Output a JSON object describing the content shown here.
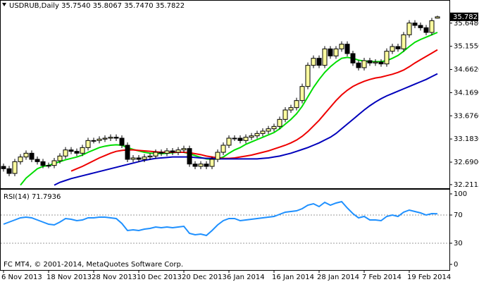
{
  "chart_data": [
    {
      "type": "candlestick",
      "title": "USDRUB,Daily 35.7540 35.8067 35.7470 35.7822",
      "categories": [
        "6 Nov 2013",
        null,
        null,
        null,
        null,
        null,
        null,
        null,
        "18 Nov 2013",
        null,
        null,
        null,
        null,
        null,
        null,
        null,
        "28 Nov 2013",
        null,
        null,
        null,
        null,
        null,
        null,
        null,
        "10 Dec 2013",
        null,
        null,
        null,
        null,
        null,
        null,
        null,
        "20 Dec 2013",
        null,
        null,
        null,
        null,
        null,
        null,
        null,
        "6 Jan 2014",
        null,
        null,
        null,
        null,
        null,
        null,
        null,
        "16 Jan 2014",
        null,
        null,
        null,
        null,
        null,
        null,
        null,
        "28 Jan 2014",
        null,
        null,
        null,
        null,
        null,
        null,
        null,
        "7 Feb 2014",
        null,
        null,
        null,
        null,
        null,
        null,
        null,
        "19 Feb 2014",
        null,
        null,
        null,
        null,
        null
      ],
      "open": [
        32.6,
        32.55,
        32.45,
        32.7,
        32.8,
        32.88,
        32.75,
        32.7,
        32.62,
        32.62,
        32.72,
        32.82,
        32.95,
        32.92,
        32.88,
        33.0,
        33.15,
        33.15,
        33.18,
        33.2,
        33.22,
        33.2,
        33.05,
        32.75,
        32.78,
        32.75,
        32.8,
        32.82,
        32.9,
        32.88,
        32.93,
        32.9,
        32.95,
        32.98,
        32.65,
        32.6,
        32.65,
        32.6,
        32.75,
        32.9,
        33.05,
        33.2,
        33.2,
        33.15,
        33.22,
        33.25,
        33.3,
        33.35,
        33.4,
        33.45,
        33.6,
        33.8,
        33.85,
        34.0,
        34.3,
        34.75,
        34.9,
        34.75,
        35.1,
        34.95,
        35.1,
        35.2,
        35.0,
        34.8,
        34.7,
        34.85,
        34.8,
        34.82,
        34.78,
        35.05,
        35.15,
        35.1,
        35.4,
        35.65,
        35.6,
        35.55,
        35.45,
        35.754
      ],
      "high": [
        32.66,
        32.61,
        32.76,
        32.86,
        32.94,
        32.94,
        32.81,
        32.76,
        32.68,
        32.78,
        32.88,
        33.01,
        33.01,
        32.98,
        33.06,
        33.21,
        33.21,
        33.24,
        33.26,
        33.28,
        33.28,
        33.26,
        33.11,
        32.84,
        32.84,
        32.86,
        32.88,
        32.96,
        32.96,
        32.99,
        32.99,
        33.01,
        33.04,
        33.04,
        32.71,
        32.71,
        32.71,
        32.81,
        32.96,
        33.11,
        33.26,
        33.26,
        33.26,
        33.28,
        33.31,
        33.36,
        33.41,
        33.46,
        33.51,
        33.66,
        33.86,
        33.91,
        34.06,
        34.36,
        34.81,
        34.96,
        34.96,
        35.16,
        35.16,
        35.16,
        35.26,
        35.26,
        35.06,
        34.86,
        34.91,
        34.91,
        34.88,
        34.88,
        35.11,
        35.21,
        35.21,
        35.46,
        35.71,
        35.71,
        35.66,
        35.61,
        35.76,
        35.8067
      ],
      "low": [
        32.49,
        32.39,
        32.39,
        32.64,
        32.74,
        32.69,
        32.64,
        32.56,
        32.56,
        32.56,
        32.66,
        32.76,
        32.86,
        32.82,
        32.82,
        32.94,
        33.09,
        33.09,
        33.12,
        33.14,
        33.14,
        32.99,
        32.69,
        32.69,
        32.69,
        32.69,
        32.74,
        32.76,
        32.82,
        32.82,
        32.84,
        32.84,
        32.89,
        32.59,
        32.54,
        32.54,
        32.54,
        32.54,
        32.69,
        32.84,
        32.99,
        33.14,
        33.09,
        33.09,
        33.16,
        33.19,
        33.24,
        33.29,
        33.34,
        33.39,
        33.54,
        33.74,
        33.79,
        33.94,
        34.24,
        34.69,
        34.69,
        34.69,
        34.89,
        34.89,
        35.04,
        34.94,
        34.74,
        34.64,
        34.64,
        34.74,
        34.74,
        34.72,
        34.72,
        34.99,
        35.04,
        35.04,
        35.34,
        35.54,
        35.49,
        35.39,
        35.39,
        35.747
      ],
      "close": [
        32.55,
        32.45,
        32.7,
        32.8,
        32.88,
        32.75,
        32.7,
        32.62,
        32.62,
        32.72,
        32.82,
        32.95,
        32.92,
        32.88,
        33.0,
        33.15,
        33.15,
        33.18,
        33.2,
        33.22,
        33.2,
        33.05,
        32.75,
        32.78,
        32.75,
        32.8,
        32.82,
        32.9,
        32.88,
        32.93,
        32.9,
        32.95,
        32.98,
        32.65,
        32.6,
        32.65,
        32.6,
        32.75,
        32.9,
        33.05,
        33.2,
        33.2,
        33.15,
        33.22,
        33.25,
        33.3,
        33.35,
        33.4,
        33.45,
        33.6,
        33.8,
        33.85,
        34.0,
        34.3,
        34.75,
        34.9,
        34.75,
        35.1,
        34.95,
        35.1,
        35.2,
        35.0,
        34.8,
        34.7,
        34.85,
        34.8,
        34.82,
        34.78,
        35.05,
        35.15,
        35.1,
        35.4,
        35.65,
        35.6,
        35.55,
        35.45,
        35.7,
        35.7822
      ],
      "up_color": "#ffffa0",
      "down_color": "#000000",
      "series": [
        {
          "color": "#00dd00",
          "values": [
            null,
            null,
            null,
            32.2,
            32.35,
            32.45,
            32.55,
            32.6,
            32.62,
            32.66,
            32.7,
            32.74,
            32.77,
            32.8,
            32.84,
            32.9,
            32.95,
            33.0,
            33.03,
            33.05,
            33.06,
            33.05,
            33.0,
            32.96,
            32.93,
            32.9,
            32.88,
            32.88,
            32.87,
            32.88,
            32.89,
            32.9,
            32.9,
            32.87,
            32.83,
            32.79,
            32.76,
            32.75,
            32.76,
            32.8,
            32.88,
            32.95,
            33.0,
            33.07,
            33.12,
            33.17,
            33.22,
            33.27,
            33.32,
            33.4,
            33.5,
            33.6,
            33.72,
            33.88,
            34.08,
            34.28,
            34.45,
            34.6,
            34.72,
            34.82,
            34.9,
            34.92,
            34.9,
            34.86,
            34.84,
            34.83,
            34.83,
            34.83,
            34.85,
            34.9,
            34.96,
            35.05,
            35.15,
            35.24,
            35.3,
            35.35,
            35.4,
            35.45
          ]
        },
        {
          "color": "#ee0000",
          "values": [
            null,
            null,
            null,
            null,
            null,
            null,
            null,
            null,
            null,
            null,
            null,
            null,
            32.5,
            32.55,
            32.6,
            32.66,
            32.72,
            32.78,
            32.83,
            32.88,
            32.92,
            32.94,
            32.95,
            32.95,
            32.94,
            32.93,
            32.92,
            32.91,
            32.9,
            32.9,
            32.9,
            32.9,
            32.9,
            32.89,
            32.87,
            32.85,
            32.82,
            32.8,
            32.78,
            32.77,
            32.77,
            32.78,
            32.8,
            32.82,
            32.84,
            32.87,
            32.9,
            32.93,
            32.97,
            33.01,
            33.05,
            33.1,
            33.16,
            33.24,
            33.34,
            33.46,
            33.58,
            33.72,
            33.86,
            34.0,
            34.12,
            34.22,
            34.3,
            34.36,
            34.41,
            34.45,
            34.48,
            34.5,
            34.53,
            34.56,
            34.6,
            34.65,
            34.72,
            34.8,
            34.87,
            34.94,
            35.01,
            35.08
          ]
        },
        {
          "color": "#0000bb",
          "values": [
            null,
            null,
            null,
            null,
            null,
            null,
            null,
            null,
            null,
            32.2,
            32.26,
            32.3,
            32.34,
            32.37,
            32.4,
            32.43,
            32.46,
            32.49,
            32.52,
            32.55,
            32.58,
            32.61,
            32.64,
            32.67,
            32.7,
            32.73,
            32.75,
            32.77,
            32.78,
            32.79,
            32.8,
            32.8,
            32.8,
            32.8,
            32.79,
            32.78,
            32.77,
            32.77,
            32.76,
            32.76,
            32.76,
            32.76,
            32.76,
            32.76,
            32.76,
            32.76,
            32.77,
            32.78,
            32.8,
            32.82,
            32.85,
            32.88,
            32.92,
            32.96,
            33.0,
            33.05,
            33.1,
            33.16,
            33.22,
            33.3,
            33.4,
            33.5,
            33.6,
            33.7,
            33.8,
            33.89,
            33.97,
            34.04,
            34.1,
            34.15,
            34.2,
            34.25,
            34.3,
            34.35,
            34.4,
            34.45,
            34.51,
            34.57
          ]
        }
      ],
      "ylim": [
        32.15,
        36.11
      ],
      "yticks": [
        32.2115,
        {
          "value": 32.69,
          "label": "32.6900"
        },
        {
          "value": 33.183,
          "label": "33.1830"
        },
        {
          "value": 33.676,
          "label": "33.6760"
        },
        {
          "value": 34.169,
          "label": "34.1690"
        },
        {
          "value": 34.662,
          "label": "34.6620"
        },
        {
          "value": 35.155,
          "label": "35.1550"
        },
        {
          "value": 35.648,
          "label": "35.6480"
        }
      ],
      "price_label": 35.7822
    },
    {
      "type": "line",
      "title": "RSI(14) 71.7936",
      "values": [
        57,
        60,
        63,
        66,
        67,
        66,
        63,
        60,
        57,
        56,
        60,
        65,
        64,
        62,
        63,
        66,
        66,
        67,
        67,
        66,
        65,
        58,
        48,
        49,
        48,
        50,
        51,
        53,
        52,
        53,
        52,
        53,
        54,
        44,
        42,
        43,
        41,
        48,
        56,
        62,
        65,
        65,
        62,
        63,
        64,
        65,
        66,
        67,
        68,
        71,
        74,
        75,
        76,
        79,
        84,
        86,
        82,
        88,
        84,
        87,
        89,
        80,
        72,
        66,
        68,
        63,
        63,
        62,
        68,
        70,
        68,
        74,
        77,
        75,
        73,
        70,
        72,
        71.7936
      ],
      "color": "#1e90ff",
      "ylim": [
        -7,
        107
      ],
      "yticks": [
        0,
        30,
        70,
        100
      ],
      "levels": [
        30,
        70
      ],
      "annotation": "FC MT4, © 2001-2014, MetaQuotes Software Corp."
    }
  ]
}
